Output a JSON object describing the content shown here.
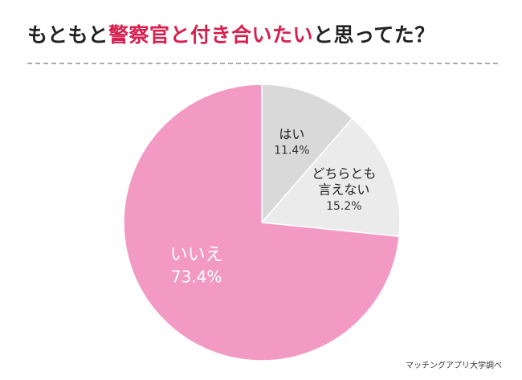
{
  "title": {
    "prefix": "もともと",
    "highlight": "警察官と付き合いたい",
    "suffix": "と思ってた？"
  },
  "chart_data": {
    "type": "pie",
    "title": "もともと警察官と付き合いたいと思ってた？",
    "slices": [
      {
        "label": "はい",
        "value": 11.4,
        "display": "11.4%",
        "color": "#d9d9d9"
      },
      {
        "label": "どちらとも言えない",
        "label_lines": [
          "どちらとも",
          "言えない"
        ],
        "value": 15.2,
        "display": "15.2%",
        "color": "#ebebeb"
      },
      {
        "label": "いいえ",
        "value": 73.4,
        "display": "73.4%",
        "color": "#f29ac4"
      }
    ],
    "start": "12 o'clock",
    "direction": "clockwise",
    "legend": "none"
  },
  "colors": {
    "accent": "#d7204f",
    "pie_stroke": "#ffffff"
  },
  "source": "マッチングアプリ大学調べ"
}
